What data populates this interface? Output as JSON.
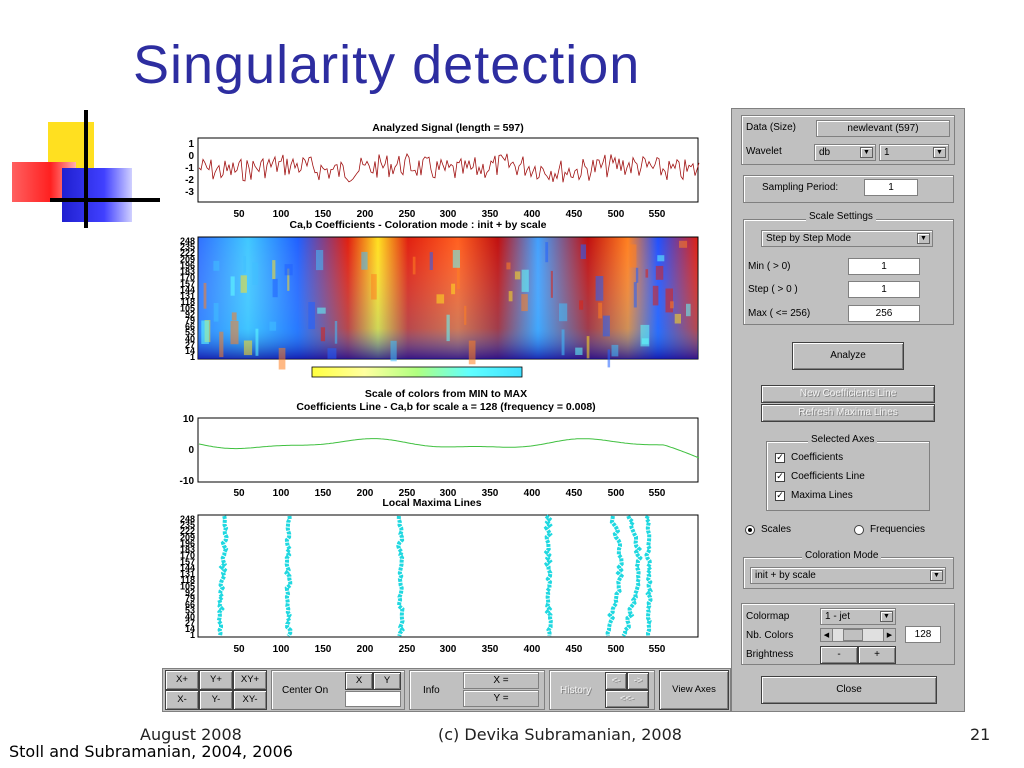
{
  "slide": {
    "title": "Singularity detection",
    "footer_date": "August 2008",
    "footer_copyright": "(c) Devika Subramanian, 2008",
    "page_number": "21",
    "citation": "Stoll and Subramanian, 2004, 2006"
  },
  "colors": {
    "title": "#2d2da0",
    "signal_line": "#a01010",
    "coef_line": "#40c040",
    "maxima_lines": "#20d8e0",
    "panel": "#c0c0c0"
  },
  "decoration": {
    "icon": "colored-squares-bullet"
  },
  "plots": {
    "signal": {
      "title": "Analyzed Signal  (length = 597)",
      "yticks": [
        "1",
        "0",
        "-1",
        "-2",
        "-3"
      ],
      "xticks": [
        "50",
        "100",
        "150",
        "200",
        "250",
        "300",
        "350",
        "400",
        "450",
        "500",
        "550"
      ]
    },
    "coefficients": {
      "title": "Ca,b Coefficients  - Coloration mode : init + by scale",
      "yticks": [
        "248",
        "235",
        "222",
        "209",
        "196",
        "183",
        "170",
        "157",
        "144",
        "131",
        "118",
        "105",
        "92",
        "79",
        "66",
        "53",
        "40",
        "27",
        "14",
        "1"
      ]
    },
    "colorbar": {
      "caption": "Scale of colors from MIN to MAX"
    },
    "coef_line": {
      "title": "Coefficients Line - Ca,b   for scale a = 128  (frequency =   0.008)",
      "yticks": [
        "10",
        "0",
        "-10"
      ],
      "xticks": [
        "50",
        "100",
        "150",
        "200",
        "250",
        "300",
        "350",
        "400",
        "450",
        "500",
        "550"
      ]
    },
    "maxima": {
      "title": "Local Maxima Lines",
      "yticks": [
        "248",
        "235",
        "222",
        "209",
        "196",
        "183",
        "170",
        "157",
        "144",
        "131",
        "118",
        "105",
        "92",
        "79",
        "66",
        "53",
        "40",
        "27",
        "14",
        "1"
      ],
      "xticks": [
        "50",
        "100",
        "150",
        "200",
        "250",
        "300",
        "350",
        "400",
        "450",
        "500",
        "550"
      ]
    }
  },
  "panel": {
    "data_label": "Data  (Size)",
    "data_value": "newlevant  (597)",
    "wavelet_label": "Wavelet",
    "wavelet_family": "db",
    "wavelet_order": "1",
    "sampling_label": "Sampling Period:",
    "sampling_value": "1",
    "scale_settings_title": "Scale Settings",
    "scale_mode": "Step by Step Mode",
    "min_label": "Min  ( > 0)",
    "min_value": "1",
    "step_label": "Step ( > 0 )",
    "step_value": "1",
    "max_label": "Max  ( <= 256)",
    "max_value": "256",
    "analyze_label": "Analyze",
    "new_coef_label": "New Coefficients Line",
    "refresh_label": "Refresh Maxima Lines",
    "selected_axes_title": "Selected Axes",
    "axes": [
      {
        "label": "Coefficients",
        "checked": true
      },
      {
        "label": "Coefficients Line",
        "checked": true
      },
      {
        "label": "Maxima Lines",
        "checked": true
      }
    ],
    "scales_label": "Scales",
    "frequencies_label": "Frequencies",
    "coloration_title": "Coloration Mode",
    "coloration_value": "init + by scale",
    "colormap_label": "Colormap",
    "colormap_value": "1 - jet",
    "nbcolors_label": "Nb. Colors",
    "nbcolors_value": "128",
    "brightness_label": "Brightness",
    "minus_label": "-",
    "plus_label": "+",
    "close_label": "Close"
  },
  "bottom_bar": {
    "xplus": "X+",
    "yplus": "Y+",
    "xyplus": "XY+",
    "xminus": "X-",
    "yminus": "Y-",
    "xyminus": "XY-",
    "center_on": "Center On",
    "x_btn": "X",
    "y_btn": "Y",
    "info": "Info",
    "x_eq": "X =",
    "y_eq": "Y =",
    "history": "History",
    "back": "<-",
    "fwd": "->",
    "back2": "<<-",
    "view_axes": "View Axes"
  }
}
